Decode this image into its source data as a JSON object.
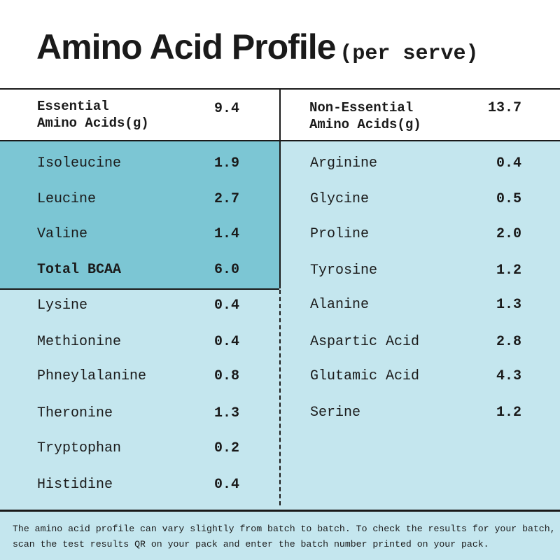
{
  "title": {
    "main": "Amino Acid Profile",
    "sub": "(per serve)"
  },
  "essential": {
    "header_line1": "Essential",
    "header_line2": "Amino Acids(g)",
    "total": "9.4",
    "bcaa_rows": [
      {
        "name": "Isoleucine",
        "value": "1.9"
      },
      {
        "name": "Leucine",
        "value": "2.7"
      },
      {
        "name": "Valine",
        "value": "1.4"
      },
      {
        "name": "Total BCAA",
        "value": "6.0"
      }
    ],
    "rows": [
      {
        "name": "Lysine",
        "value": "0.4"
      },
      {
        "name": "Methionine",
        "value": "0.4"
      },
      {
        "name": "Phneylalanine",
        "value": "0.8"
      },
      {
        "name": "Theronine",
        "value": "1.3"
      },
      {
        "name": "Tryptophan",
        "value": "0.2"
      },
      {
        "name": "Histidine",
        "value": "0.4"
      }
    ]
  },
  "non_essential": {
    "header_line1": "Non-Essential",
    "header_line2": "Amino Acids(g)",
    "total": "13.7",
    "rows": [
      {
        "name": "Arginine",
        "value": "0.4"
      },
      {
        "name": "Glycine",
        "value": "0.5"
      },
      {
        "name": "Proline",
        "value": "2.0"
      },
      {
        "name": "Tyrosine",
        "value": "1.2"
      },
      {
        "name": "Alanine",
        "value": "1.3"
      },
      {
        "name": "Aspartic Acid",
        "value": "2.8"
      },
      {
        "name": "Glutamic Acid",
        "value": "4.3"
      },
      {
        "name": "Serine",
        "value": "1.2"
      }
    ]
  },
  "footer": "The amino acid profile can vary slightly from batch to batch. To check the results for your batch, scan the test results QR on your pack and enter the batch number printed on your pack.",
  "colors": {
    "bcaa_highlight": "#7cc6d4",
    "table_background": "#c4e6ee",
    "lines": "#1a1a1a"
  }
}
